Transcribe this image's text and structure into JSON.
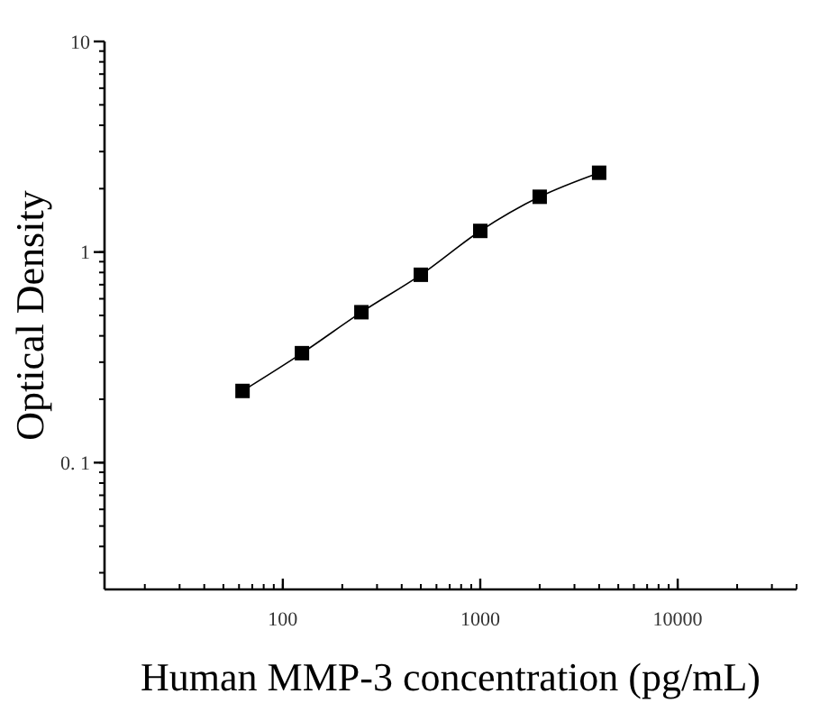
{
  "chart_data": {
    "type": "line",
    "xlabel": "Human MMP-3 concentration (pg/mL)",
    "ylabel": "Optical Density",
    "log": "xy",
    "marker": "square",
    "line_style": "solid",
    "xlim": [
      12.5,
      40000
    ],
    "xticks": [
      100,
      1000,
      10000
    ],
    "ylim": [
      0.025,
      10
    ],
    "yticks": [
      {
        "value": 0.1,
        "label": "0. 1"
      },
      1,
      10
    ],
    "series": [
      {
        "color": "#000000",
        "x": [
          62.5,
          125,
          250,
          500,
          1000,
          2000,
          4000
        ],
        "values": [
          0.219,
          0.331,
          0.518,
          0.78,
          1.26,
          1.83,
          2.38
        ]
      }
    ]
  }
}
